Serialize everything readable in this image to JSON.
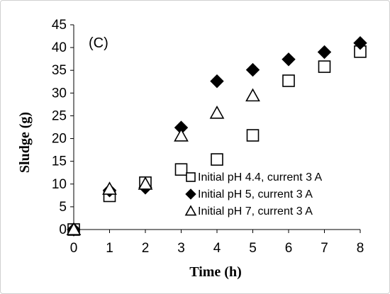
{
  "chart_data": {
    "type": "scatter",
    "panel_label": "(C)",
    "xlabel": "Time (h)",
    "ylabel": "Sludge (g)",
    "xlim": [
      0,
      8
    ],
    "ylim": [
      0,
      45
    ],
    "x_ticks": [
      "0",
      "1",
      "2",
      "3",
      "4",
      "5",
      "6",
      "7",
      "8"
    ],
    "y_ticks": [
      "0",
      "5",
      "10",
      "15",
      "20",
      "25",
      "30",
      "35",
      "40",
      "45"
    ],
    "grid": false,
    "legend_position": "center-right",
    "series": [
      {
        "name": "Initial pH 4.4, current 3 A",
        "marker": "square-open",
        "x": [
          0,
          1,
          2,
          3,
          4,
          5,
          6,
          7,
          8
        ],
        "y": [
          0,
          7.4,
          10.3,
          13.2,
          15.4,
          20.7,
          32.7,
          35.8,
          39.1
        ]
      },
      {
        "name": "Initial pH 5, current 3 A",
        "marker": "diamond-filled",
        "x": [
          0,
          1,
          2,
          3,
          4,
          5,
          6,
          7,
          8
        ],
        "y": [
          0,
          8.6,
          9.2,
          22.4,
          32.6,
          35.1,
          37.4,
          39.0,
          41.0
        ]
      },
      {
        "name": "Initial pH 7, current 3 A",
        "marker": "triangle-open",
        "x": [
          0,
          1,
          2,
          3,
          4,
          5
        ],
        "y": [
          0,
          8.9,
          10.0,
          20.6,
          25.6,
          29.4
        ]
      }
    ]
  }
}
